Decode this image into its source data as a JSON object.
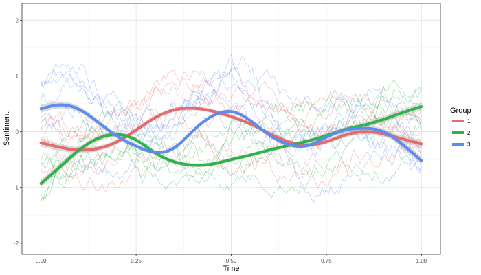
{
  "chart_data": {
    "type": "line",
    "title": "",
    "xlabel": "Time",
    "ylabel": "Sentiment",
    "xlim": [
      -0.05,
      1.05
    ],
    "ylim": [
      -2.2,
      2.3
    ],
    "x_ticks": [
      0.0,
      0.25,
      0.5,
      0.75,
      1.0
    ],
    "x_tick_labels": [
      "0.00",
      "0.25",
      "0.50",
      "0.75",
      "1.00"
    ],
    "y_ticks": [
      -2,
      -1,
      0,
      1,
      2
    ],
    "y_tick_labels": [
      "-2",
      "-1",
      "0",
      "1",
      "2"
    ],
    "grid": true,
    "legend": {
      "title": "Group",
      "position": "right"
    },
    "series": [
      {
        "name": "1",
        "color": "#E8696B",
        "x": [
          0.0,
          0.05,
          0.1,
          0.15,
          0.2,
          0.25,
          0.3,
          0.35,
          0.4,
          0.45,
          0.5,
          0.55,
          0.6,
          0.65,
          0.7,
          0.75,
          0.8,
          0.85,
          0.9,
          0.95,
          1.0
        ],
        "smooth": [
          -0.2,
          -0.28,
          -0.33,
          -0.3,
          -0.18,
          0.03,
          0.25,
          0.39,
          0.42,
          0.37,
          0.27,
          0.14,
          -0.03,
          -0.18,
          -0.24,
          -0.18,
          -0.06,
          0.0,
          -0.04,
          -0.13,
          -0.22
        ]
      },
      {
        "name": "2",
        "color": "#2DB34A",
        "x": [
          0.0,
          0.05,
          0.1,
          0.15,
          0.2,
          0.25,
          0.3,
          0.35,
          0.4,
          0.45,
          0.5,
          0.55,
          0.6,
          0.65,
          0.7,
          0.75,
          0.8,
          0.85,
          0.9,
          0.95,
          1.0
        ],
        "smooth": [
          -0.93,
          -0.63,
          -0.33,
          -0.12,
          -0.05,
          -0.15,
          -0.38,
          -0.54,
          -0.6,
          -0.58,
          -0.5,
          -0.42,
          -0.33,
          -0.25,
          -0.17,
          -0.07,
          0.04,
          0.12,
          0.22,
          0.34,
          0.45
        ]
      },
      {
        "name": "3",
        "color": "#5C8CF2",
        "x": [
          0.0,
          0.05,
          0.1,
          0.15,
          0.2,
          0.25,
          0.3,
          0.35,
          0.4,
          0.45,
          0.5,
          0.55,
          0.6,
          0.65,
          0.7,
          0.75,
          0.8,
          0.85,
          0.9,
          0.95,
          1.0
        ],
        "smooth": [
          0.41,
          0.48,
          0.4,
          0.17,
          -0.08,
          -0.26,
          -0.37,
          -0.29,
          0.02,
          0.28,
          0.36,
          0.2,
          -0.06,
          -0.23,
          -0.25,
          -0.1,
          0.03,
          0.06,
          0.0,
          -0.23,
          -0.52
        ]
      }
    ]
  }
}
